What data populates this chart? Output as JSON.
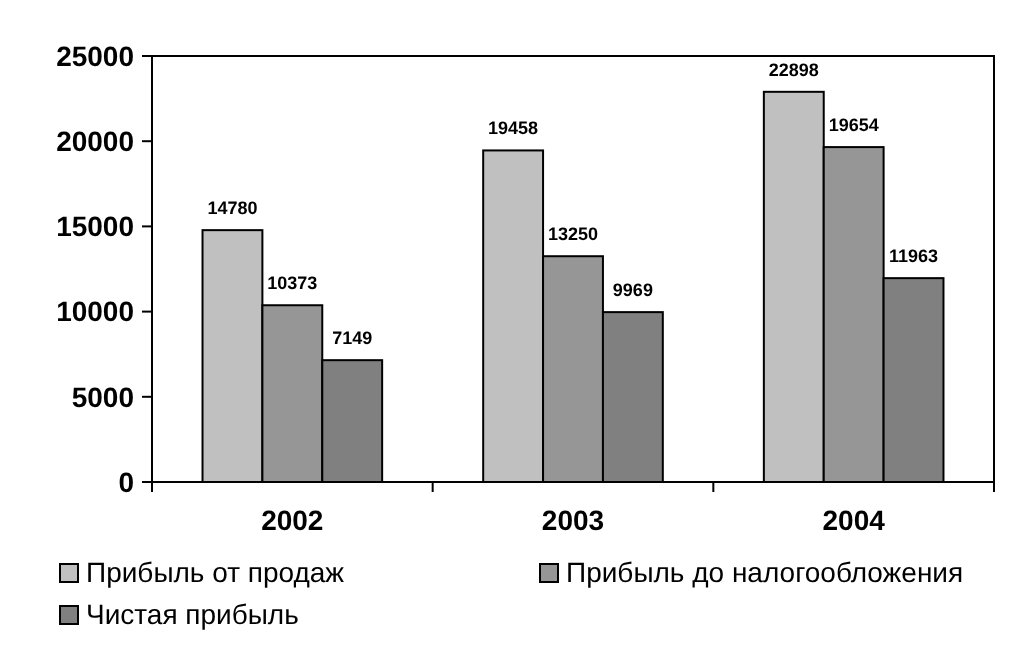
{
  "chart_data": {
    "type": "bar",
    "categories": [
      "2002",
      "2003",
      "2004"
    ],
    "series": [
      {
        "name": "Прибыль от продаж",
        "color": "#c0c0c0",
        "values": [
          14780,
          19458,
          22898
        ]
      },
      {
        "name": "Прибыль до налогообложения",
        "color": "#969696",
        "values": [
          10373,
          13250,
          19654
        ]
      },
      {
        "name": "Чистая прибыль",
        "color": "#808080",
        "values": [
          7149,
          9969,
          11963
        ]
      }
    ],
    "ylim": [
      0,
      25000
    ],
    "yticks": [
      0,
      5000,
      10000,
      15000,
      20000,
      25000
    ],
    "grid": false,
    "data_labels": true,
    "legend": "bottom"
  }
}
